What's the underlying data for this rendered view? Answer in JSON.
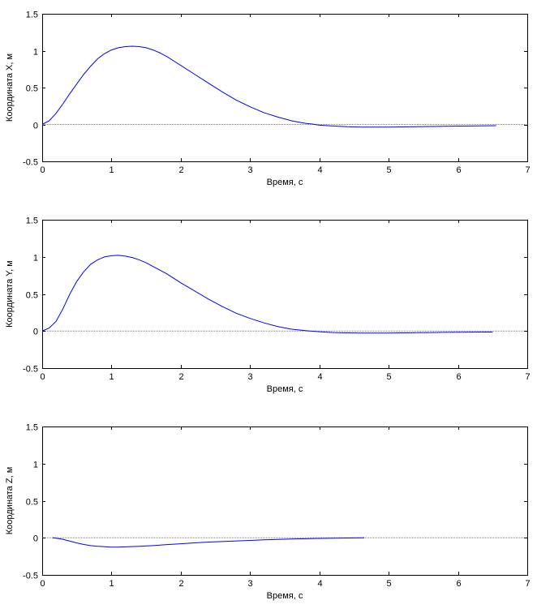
{
  "colors": {
    "background": "#ffffff",
    "axes": "#000000",
    "series_line": "#0000ff",
    "reference_line": "#808080"
  },
  "chart_data": [
    {
      "type": "line",
      "xlabel": "Время, с",
      "ylabel": "Координата X, м",
      "xlim": [
        0,
        7
      ],
      "ylim": [
        -0.5,
        1.5
      ],
      "xticks": [
        0,
        1,
        2,
        3,
        4,
        5,
        6,
        7
      ],
      "yticks": [
        -0.5,
        0,
        0.5,
        1,
        1.5
      ],
      "grid": false,
      "reference_line": {
        "y": 0,
        "x_range": [
          0,
          7
        ]
      },
      "series": [
        {
          "x": [
            0,
            0.1,
            0.2,
            0.3,
            0.4,
            0.5,
            0.6,
            0.7,
            0.8,
            0.9,
            1.0,
            1.1,
            1.2,
            1.3,
            1.4,
            1.5,
            1.6,
            1.7,
            1.8,
            1.9,
            2.0,
            2.2,
            2.4,
            2.6,
            2.8,
            3.0,
            3.2,
            3.4,
            3.6,
            3.8,
            3.9,
            4.0,
            4.2,
            4.4,
            4.6,
            4.8,
            5.0,
            5.2,
            5.4,
            5.6,
            5.8,
            6.0,
            6.2,
            6.4,
            6.55
          ],
          "y": [
            0,
            0.05,
            0.15,
            0.28,
            0.42,
            0.55,
            0.68,
            0.79,
            0.89,
            0.96,
            1.01,
            1.04,
            1.055,
            1.06,
            1.055,
            1.04,
            1.01,
            0.97,
            0.92,
            0.86,
            0.8,
            0.68,
            0.56,
            0.44,
            0.33,
            0.24,
            0.16,
            0.1,
            0.05,
            0.015,
            0.005,
            -0.01,
            -0.02,
            -0.03,
            -0.035,
            -0.035,
            -0.035,
            -0.033,
            -0.03,
            -0.028,
            -0.025,
            -0.022,
            -0.02,
            -0.018,
            -0.017
          ]
        }
      ]
    },
    {
      "type": "line",
      "xlabel": "Время, с",
      "ylabel": "Координата Y, м",
      "xlim": [
        0,
        7
      ],
      "ylim": [
        -0.5,
        1.5
      ],
      "xticks": [
        0,
        1,
        2,
        3,
        4,
        5,
        6,
        7
      ],
      "yticks": [
        -0.5,
        0,
        0.5,
        1,
        1.5
      ],
      "grid": false,
      "reference_line": {
        "y": 0,
        "x_range": [
          0,
          7
        ]
      },
      "series": [
        {
          "x": [
            0,
            0.1,
            0.2,
            0.3,
            0.4,
            0.5,
            0.6,
            0.7,
            0.8,
            0.9,
            1.0,
            1.1,
            1.2,
            1.3,
            1.4,
            1.5,
            1.6,
            1.7,
            1.8,
            1.9,
            2.0,
            2.2,
            2.4,
            2.6,
            2.8,
            3.0,
            3.2,
            3.4,
            3.6,
            3.8,
            4.0,
            4.2,
            4.4,
            4.6,
            4.8,
            5.0,
            5.2,
            5.4,
            5.6,
            5.8,
            6.0,
            6.2,
            6.4,
            6.5
          ],
          "y": [
            0,
            0.04,
            0.13,
            0.3,
            0.5,
            0.67,
            0.8,
            0.9,
            0.96,
            1.0,
            1.015,
            1.02,
            1.01,
            0.99,
            0.96,
            0.92,
            0.87,
            0.82,
            0.77,
            0.71,
            0.65,
            0.54,
            0.43,
            0.33,
            0.24,
            0.17,
            0.11,
            0.06,
            0.025,
            0.005,
            -0.01,
            -0.02,
            -0.025,
            -0.028,
            -0.028,
            -0.027,
            -0.025,
            -0.022,
            -0.02,
            -0.018,
            -0.016,
            -0.015,
            -0.014,
            -0.014
          ]
        }
      ]
    },
    {
      "type": "line",
      "xlabel": "Время, с",
      "ylabel": "Координата Z, м",
      "xlim": [
        0,
        7
      ],
      "ylim": [
        -0.5,
        1.5
      ],
      "xticks": [
        0,
        1,
        2,
        3,
        4,
        5,
        6,
        7
      ],
      "yticks": [
        -0.5,
        0,
        0.5,
        1,
        1.5
      ],
      "grid": false,
      "reference_line": {
        "y": 0,
        "x_range": [
          0,
          7
        ]
      },
      "series": [
        {
          "x": [
            0.15,
            0.2,
            0.3,
            0.4,
            0.5,
            0.6,
            0.7,
            0.8,
            0.9,
            1.0,
            1.1,
            1.2,
            1.4,
            1.6,
            1.8,
            2.0,
            2.2,
            2.4,
            2.6,
            2.8,
            3.0,
            3.2,
            3.4,
            3.6,
            3.8,
            4.0,
            4.2,
            4.4,
            4.65
          ],
          "y": [
            0,
            -0.005,
            -0.02,
            -0.045,
            -0.07,
            -0.09,
            -0.105,
            -0.115,
            -0.12,
            -0.125,
            -0.125,
            -0.122,
            -0.115,
            -0.105,
            -0.092,
            -0.08,
            -0.068,
            -0.058,
            -0.05,
            -0.042,
            -0.035,
            -0.028,
            -0.022,
            -0.017,
            -0.012,
            -0.008,
            -0.005,
            -0.003,
            0
          ]
        }
      ]
    }
  ]
}
